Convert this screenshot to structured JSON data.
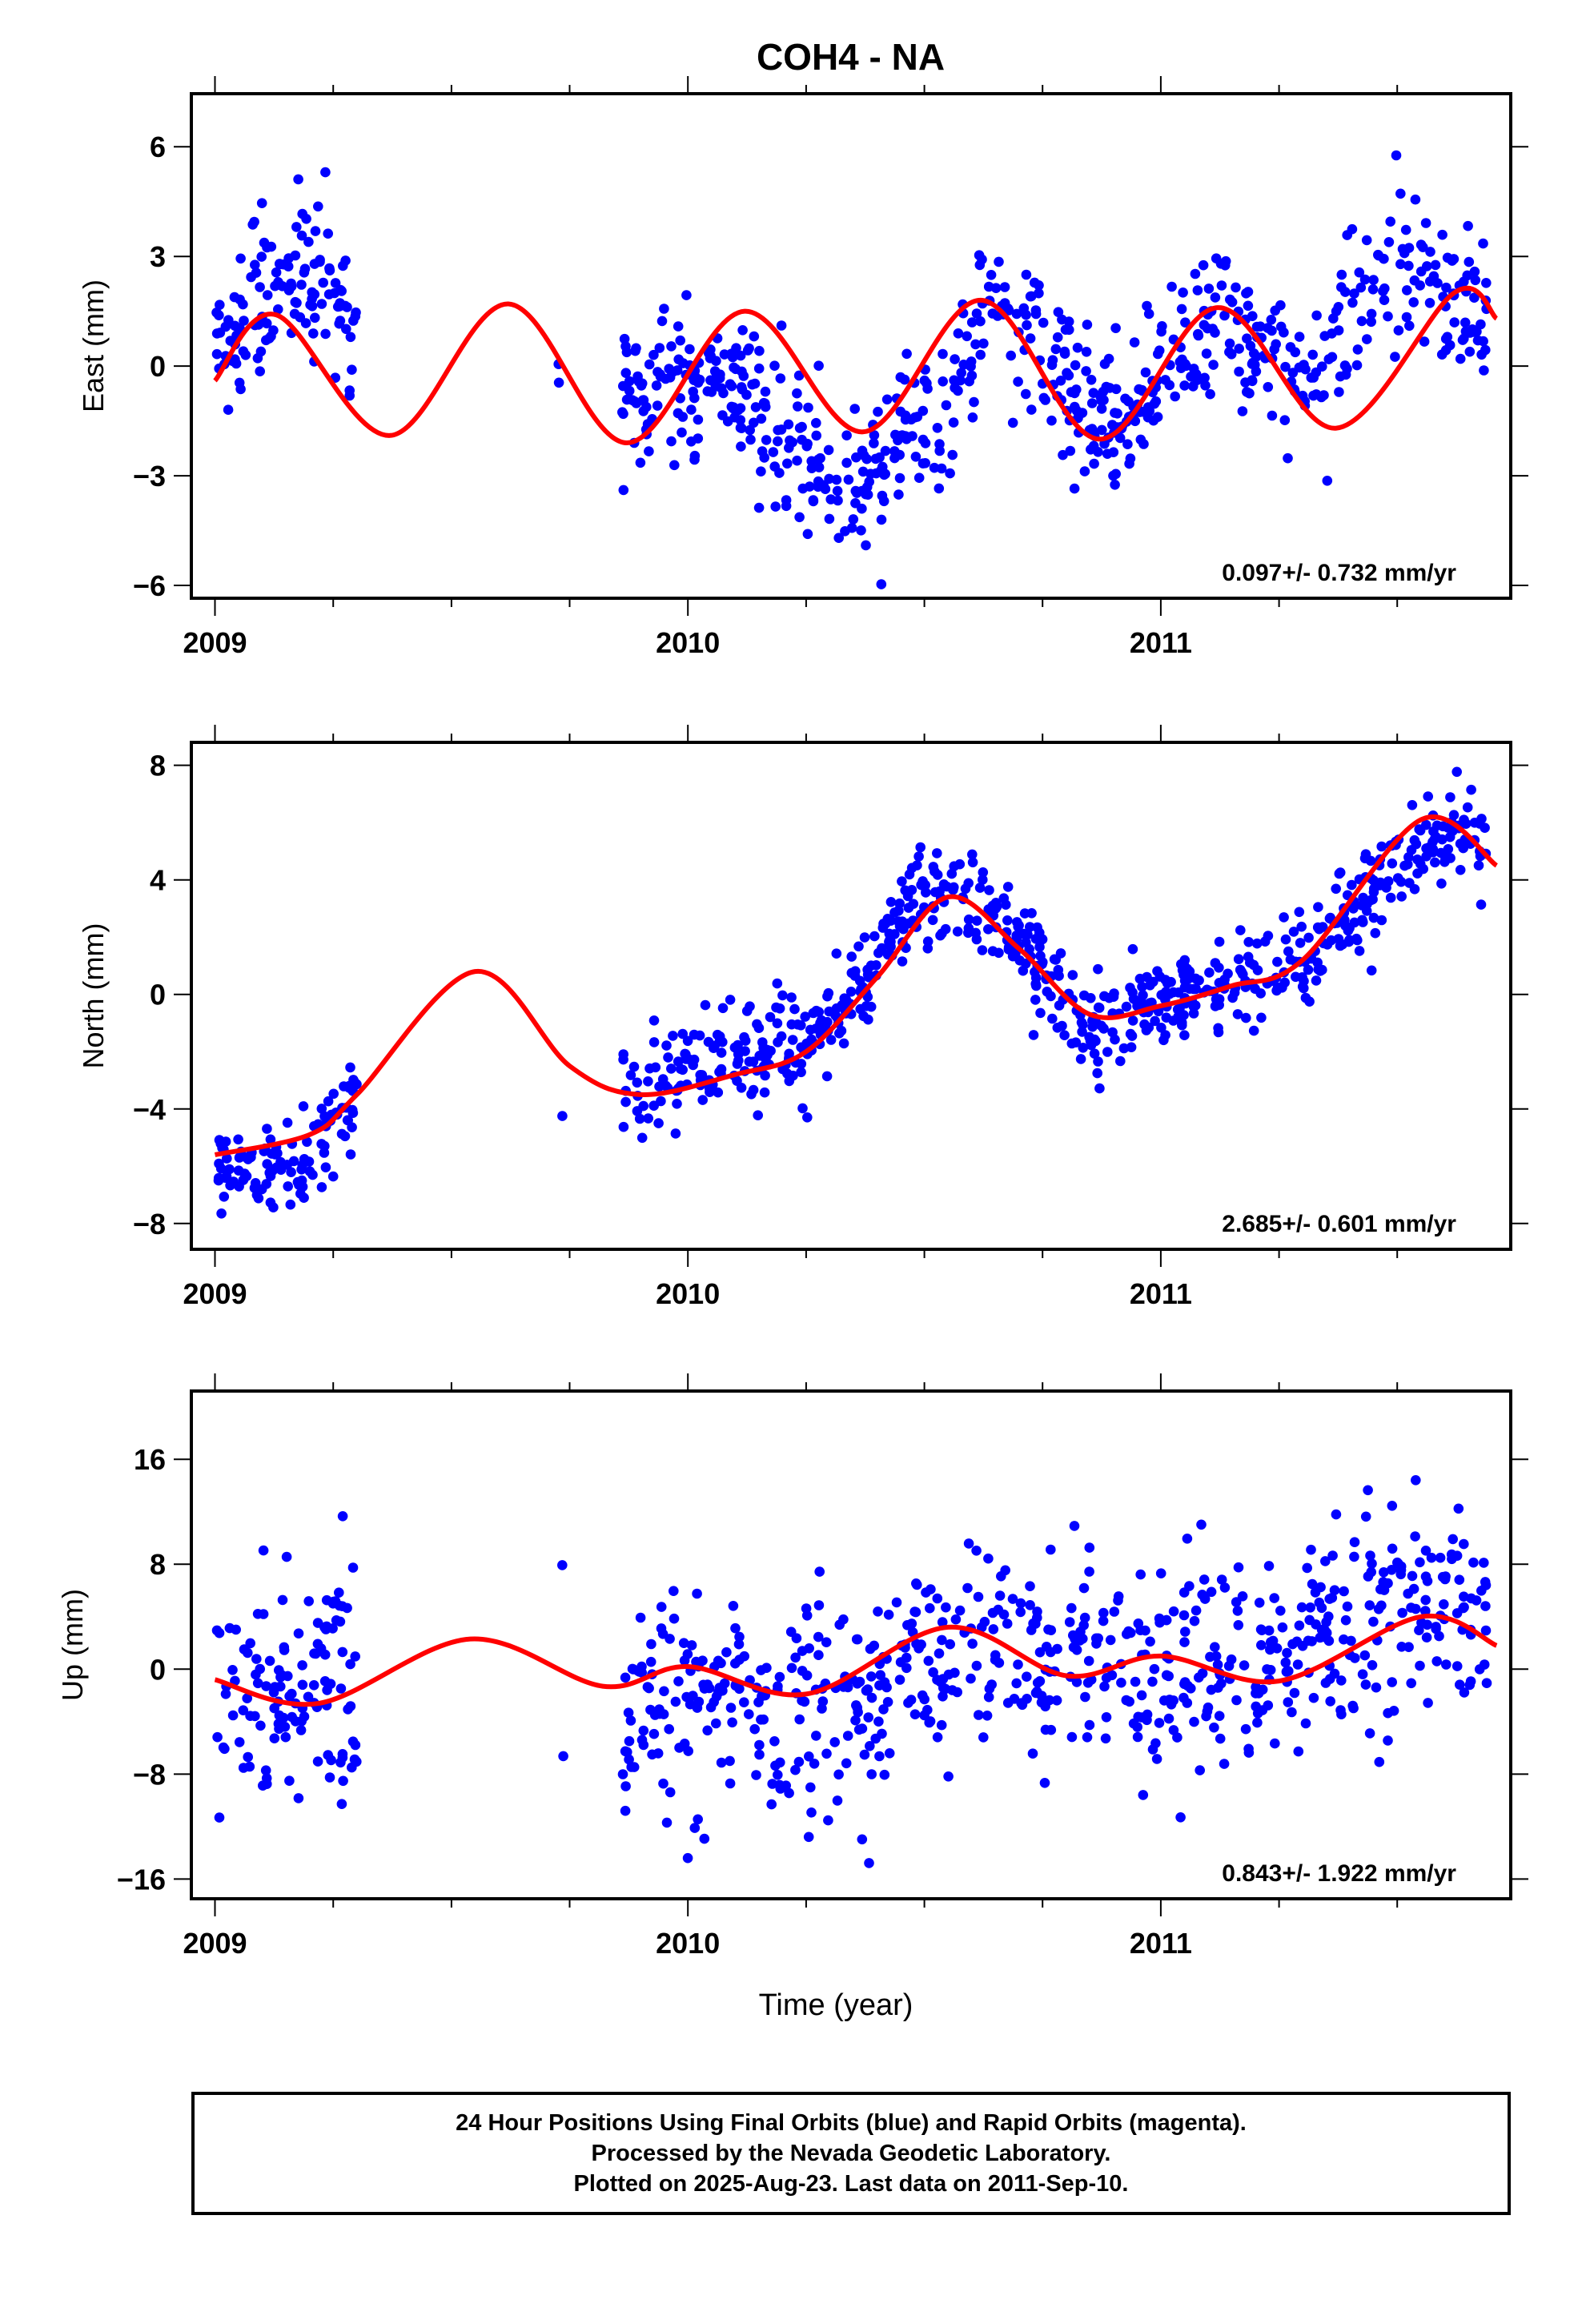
{
  "title": "COH4 - NA",
  "footer": {
    "line1": "24 Hour Positions Using Final Orbits (blue) and Rapid Orbits (magenta).",
    "line2": "Processed by the Nevada Geodetic Laboratory.",
    "line3": "Plotted on 2025-Aug-23. Last data on 2011-Sep-10."
  },
  "colors": {
    "points": "#0000ff",
    "fit": "#ff0000",
    "frame": "#000000"
  },
  "chart_data": [
    {
      "type": "scatter",
      "ylabel": "East (mm)",
      "xlabel": "",
      "xticks": [
        "2009",
        "2010",
        "2011"
      ],
      "xtick_values": [
        2009,
        2010,
        2011
      ],
      "xlim": [
        2008.95,
        2011.74
      ],
      "ylim": [
        -6.35,
        7.45
      ],
      "yticks": [
        6,
        3,
        0,
        -3,
        -6
      ],
      "rate_text": "0.097+/- 0.732 mm/yr",
      "fit": {
        "name": "",
        "x": [
          2009.0,
          2009.13,
          2009.37,
          2009.62,
          2009.87,
          2010.12,
          2010.37,
          2010.62,
          2010.87,
          2011.12,
          2011.37,
          2011.62,
          2011.71
        ],
        "y": [
          -0.4,
          1.4,
          -1.9,
          1.7,
          -2.1,
          1.5,
          -1.8,
          1.8,
          -2.0,
          1.6,
          -1.7,
          2.0,
          1.3
        ]
      },
      "series": [
        {
          "name": "",
          "segments": [
            [
              2009.0,
              2009.3
            ],
            [
              2009.72,
              2009.73
            ],
            [
              2009.86,
              2011.69
            ]
          ],
          "trend_points": [
            [
              2009.0,
              0.6
            ],
            [
              2009.16,
              2.9
            ],
            [
              2009.3,
              1.2
            ],
            [
              2009.87,
              -0.9
            ],
            [
              2010.1,
              -0.4
            ],
            [
              2010.32,
              -3.6
            ],
            [
              2010.55,
              -1.0
            ],
            [
              2010.65,
              1.9
            ],
            [
              2010.9,
              -1.8
            ],
            [
              2011.12,
              1.5
            ],
            [
              2011.3,
              -0.6
            ],
            [
              2011.5,
              3.1
            ],
            [
              2011.69,
              1.4
            ]
          ],
          "spread": 1.25,
          "count": 820
        }
      ]
    },
    {
      "type": "scatter",
      "ylabel": "North (mm)",
      "xlabel": "",
      "xticks": [
        "2009",
        "2010",
        "2011"
      ],
      "xtick_values": [
        2009,
        2010,
        2011
      ],
      "xlim": [
        2008.95,
        2011.74
      ],
      "ylim": [
        -8.9,
        8.8
      ],
      "yticks": [
        8,
        4,
        0,
        -4,
        -8
      ],
      "rate_text": "2.685+/- 0.601 mm/yr",
      "fit": {
        "name": "",
        "x": [
          2009.0,
          2009.2,
          2009.3,
          2009.55,
          2009.75,
          2009.9,
          2010.1,
          2010.25,
          2010.4,
          2010.55,
          2010.7,
          2010.85,
          2011.0,
          2011.15,
          2011.3,
          2011.55,
          2011.71
        ],
        "y": [
          -5.6,
          -4.9,
          -3.5,
          0.8,
          -2.5,
          -3.5,
          -2.8,
          -2.0,
          0.6,
          3.4,
          1.6,
          -0.7,
          -0.4,
          0.3,
          1.2,
          6.1,
          4.5
        ]
      },
      "series": [
        {
          "name": "",
          "segments": [
            [
              2009.0,
              2009.3
            ],
            [
              2009.73,
              2009.74
            ],
            [
              2009.86,
              2011.69
            ]
          ],
          "trend_points": [
            [
              2009.0,
              -6.0
            ],
            [
              2009.2,
              -5.7
            ],
            [
              2009.3,
              -3.2
            ],
            [
              2009.87,
              -3.5
            ],
            [
              2010.1,
              -2.2
            ],
            [
              2010.3,
              -1.3
            ],
            [
              2010.5,
              3.8
            ],
            [
              2010.68,
              2.4
            ],
            [
              2010.85,
              -1.5
            ],
            [
              2011.0,
              -0.3
            ],
            [
              2011.2,
              0.4
            ],
            [
              2011.35,
              1.8
            ],
            [
              2011.55,
              5.6
            ],
            [
              2011.69,
              5.2
            ]
          ],
          "spread": 1.1,
          "count": 830
        }
      ]
    },
    {
      "type": "scatter",
      "ylabel": "Up (mm)",
      "xlabel": "Time (year)",
      "xticks": [
        "2009",
        "2010",
        "2011"
      ],
      "xtick_values": [
        2009,
        2010,
        2011
      ],
      "xlim": [
        2008.95,
        2011.74
      ],
      "ylim": [
        -17.5,
        21.2
      ],
      "yticks": [
        16,
        8,
        0,
        -8,
        -16
      ],
      "rate_text": "0.843+/- 1.922 mm/yr",
      "fit": {
        "name": "",
        "x": [
          2009.0,
          2009.22,
          2009.54,
          2009.82,
          2010.0,
          2010.25,
          2010.55,
          2010.8,
          2011.0,
          2011.25,
          2011.55,
          2011.71
        ],
        "y": [
          -0.8,
          -2.6,
          2.3,
          -1.3,
          0.2,
          -1.9,
          3.2,
          -0.5,
          1.0,
          -0.9,
          4.0,
          1.8
        ]
      },
      "series": [
        {
          "name": "",
          "segments": [
            [
              2009.0,
              2009.3
            ],
            [
              2009.73,
              2009.74
            ],
            [
              2009.86,
              2011.69
            ]
          ],
          "trend_points": [
            [
              2009.0,
              -0.5
            ],
            [
              2009.3,
              -0.8
            ],
            [
              2009.87,
              -2.5
            ],
            [
              2010.25,
              -2.6
            ],
            [
              2010.55,
              1.0
            ],
            [
              2010.85,
              0.2
            ],
            [
              2011.2,
              0.0
            ],
            [
              2011.5,
              5.5
            ],
            [
              2011.69,
              4.0
            ]
          ],
          "spread": 5.2,
          "count": 800
        }
      ]
    }
  ]
}
